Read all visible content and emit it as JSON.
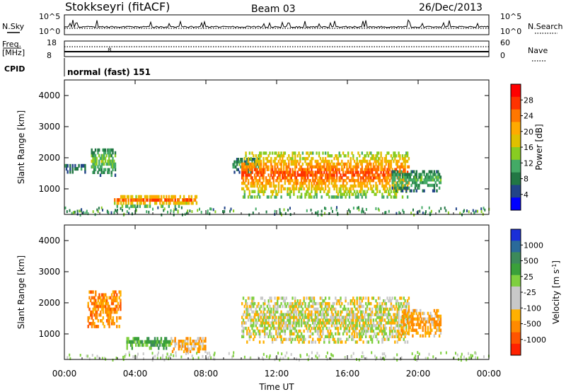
{
  "header": {
    "station": "Stokkseyri (fitACF)",
    "beam": "Beam 03",
    "date": "26/Dec/2013"
  },
  "top_panels": {
    "nsky_label": "N.Sky",
    "nsky_ticks": [
      "10^5",
      "10^0"
    ],
    "nsearch_label": "N.Search",
    "nsearch_ticks": [
      "10^5",
      "10^0"
    ],
    "freq_label": "Freq.",
    "freq_unit": "[MHz]",
    "freq_ticks": [
      "18",
      "8"
    ],
    "nave_label": "Nave",
    "nave_ticks": [
      "60",
      "0"
    ],
    "cpid_label": "CPID",
    "cpid_value": "normal (fast) 151"
  },
  "axes": {
    "ylabel": "Slant Range [km]",
    "yticks": [
      "4000",
      "3000",
      "2000",
      "1000"
    ],
    "xticks": [
      "00:00",
      "04:00",
      "08:00",
      "12:00",
      "16:00",
      "20:00",
      "00:00"
    ],
    "xlabel": "Time UT"
  },
  "power_colorbar": {
    "label": "Power [dB]",
    "ticks": [
      "28",
      "24",
      "20",
      "16",
      "12",
      "8",
      "4"
    ],
    "colors": [
      "#ff0000",
      "#ff3300",
      "#ff7700",
      "#ffaa00",
      "#e0c000",
      "#88cc22",
      "#44aa66",
      "#227744",
      "#224488",
      "#0000ff"
    ]
  },
  "velocity_colorbar": {
    "label": "Velocity [m s",
    "label_sup": "-1",
    "label_end": "]",
    "ticks": [
      "1000",
      "500",
      "25",
      "-25",
      "-100",
      "-500",
      "-1000"
    ],
    "colors": [
      "#1a2fd8",
      "#2a6a9a",
      "#3c8a5a",
      "#3aa03a",
      "#7fcf3f",
      "#c8c8c8",
      "#c8c8c8",
      "#ffb000",
      "#ff8a00",
      "#ff5500",
      "#ff2200"
    ]
  },
  "chart_data": [
    {
      "type": "heatmap",
      "title": "Power",
      "xlabel": "Time UT",
      "ylabel": "Slant Range [km]",
      "xlim": [
        0,
        24
      ],
      "ylim": [
        180,
        4500
      ],
      "colorbar_range_dB": [
        0,
        32
      ],
      "features": [
        {
          "time_start_h": 0.0,
          "time_end_h": 1.2,
          "range_km": [
            1500,
            1800
          ],
          "power_dB": 8
        },
        {
          "time_start_h": 1.5,
          "time_end_h": 2.9,
          "range_km": [
            1400,
            2300
          ],
          "power_dB": 14
        },
        {
          "time_start_h": 2.8,
          "time_end_h": 7.5,
          "range_km": [
            400,
            800
          ],
          "power_dB": 26
        },
        {
          "time_start_h": 9.5,
          "time_end_h": 11.0,
          "range_km": [
            1500,
            2000
          ],
          "power_dB": 10
        },
        {
          "time_start_h": 10.0,
          "time_end_h": 19.5,
          "range_km": [
            700,
            2200
          ],
          "power_dB": 28
        },
        {
          "time_start_h": 18.5,
          "time_end_h": 21.3,
          "range_km": [
            900,
            1600
          ],
          "power_dB": 12
        }
      ]
    },
    {
      "type": "heatmap",
      "title": "Velocity",
      "xlabel": "Time UT",
      "ylabel": "Slant Range [km]",
      "xlim": [
        0,
        24
      ],
      "ylim": [
        180,
        4500
      ],
      "colorbar_ticks_m_s": [
        1000,
        500,
        25,
        -25,
        -100,
        -500,
        -1000
      ],
      "features": [
        {
          "time_start_h": 1.3,
          "time_end_h": 3.2,
          "range_km": [
            1200,
            2400
          ],
          "velocity_m_s": -300
        },
        {
          "time_start_h": 3.5,
          "time_end_h": 6.0,
          "range_km": [
            500,
            900
          ],
          "velocity_m_s": 300
        },
        {
          "time_start_h": 6.0,
          "time_end_h": 8.0,
          "range_km": [
            400,
            900
          ],
          "velocity_m_s": -150
        },
        {
          "time_start_h": 10.0,
          "time_end_h": 19.5,
          "range_km": [
            700,
            2200
          ],
          "velocity_m_s": 0
        },
        {
          "time_start_h": 19.0,
          "time_end_h": 21.3,
          "range_km": [
            900,
            1800
          ],
          "velocity_m_s": -200
        }
      ]
    }
  ]
}
